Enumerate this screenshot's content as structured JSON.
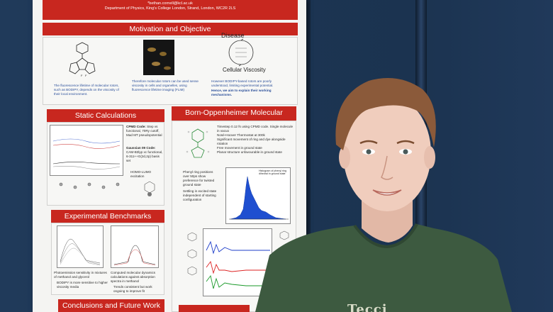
{
  "poster": {
    "header": {
      "email": "*bethan.cornell@kcl.ac.uk",
      "affiliation": "Department of Physics, King's College London, Strand, London, WC2R 2LS"
    },
    "motivation": {
      "title": "Motivation and Objective",
      "col1": "The fluorescence lifetime of molecular rotors, such as BODIPY, depends on the viscosity of their local environment.",
      "col2": "Therefore molecular rotors can be used sense viscosity in cells and organelles, using fluorescence lifetime imaging (FLIM)",
      "col3a": "However BODIPY-based rotors are poorly understood, limiting experimental potential.",
      "col3b": "Hence, we aim to explain their working mechanisms.",
      "diagram_top": "Disease",
      "diagram_bottom": "Cellular Viscosity"
    },
    "static": {
      "title": "Static Calculations",
      "cpmd_label": "CPMD Code:",
      "cpmd_text": "Step vs functional, 70Ry cutoff, Mad MT pseudopotential",
      "gaussian_label": "Gaussian 09 Code:",
      "gaussian_text": "CAM-B3lyp xc functional, 6-311++G(2d,2p) basis set",
      "homo": "HOMO-LUMO excitation"
    },
    "bomd": {
      "title": "Born-Oppenheimer Molecular Dynamics",
      "bullets": [
        "Timestep 0.12 fs using CPMD code. Single molecule in vacuo",
        "Nosé-Hoover Thermostat at 300k",
        "Significant movement of ring and dye alongside rotation",
        "Free movement in ground state",
        "Planar structure unfavourable in ground state"
      ],
      "phenyl": [
        "Phenyl ring positions over 50ps show preference for twisted ground state",
        "Settling in excited state independent of starting configuration"
      ],
      "hist_title": "Histogram of phenyl ring dihedral in ground state"
    },
    "benchmarks": {
      "title": "Experimental Benchmarks",
      "left_caption": "Photoemission sensitivity in mixtures of methanol and glycerol",
      "left_bullet": "BODIPY is more sensitive to higher viscosity media",
      "right_caption": "Computed molecular dynamics calculations against absorption spectra in methanol",
      "right_bullet": "Trends consistent but work ongoing to improve fit"
    },
    "conclusions": {
      "title": "Conclusions and Future Work"
    }
  },
  "shirt_text": "Tecci",
  "colors": {
    "poster_red": "#c8271f",
    "board_blue": "#1d3450",
    "shirt_green": "#3d5a40",
    "hair": "#8b5a3a"
  }
}
